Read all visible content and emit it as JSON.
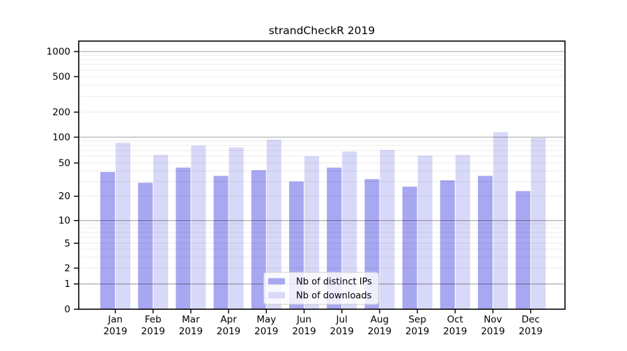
{
  "window": {
    "title": "strandCheckR 2019"
  },
  "chart_data": {
    "type": "bar",
    "title": "strandCheckR 2019",
    "categories": [
      "Jan",
      "Feb",
      "Mar",
      "Apr",
      "May",
      "Jun",
      "Jul",
      "Aug",
      "Sep",
      "Oct",
      "Nov",
      "Dec"
    ],
    "category_year": "2019",
    "series": [
      {
        "name": "Nb of distinct IPs",
        "color": "#a7a7f2",
        "values": [
          39,
          29,
          44,
          35,
          41,
          30,
          44,
          32,
          26,
          31,
          35,
          23
        ]
      },
      {
        "name": "Nb of downloads",
        "color": "#d8d8f8",
        "values": [
          86,
          62,
          80,
          76,
          94,
          60,
          68,
          71,
          61,
          62,
          115,
          98
        ]
      }
    ],
    "xlabel": "",
    "ylabel": "",
    "yscale": "symlog",
    "yticks": [
      0,
      1,
      2,
      5,
      10,
      20,
      50,
      100,
      200,
      500,
      1000
    ],
    "ylim": [
      0,
      1350
    ],
    "grid": true,
    "legend": {
      "position": "lower-center",
      "labels": [
        "Nb of distinct IPs",
        "Nb of downloads"
      ]
    }
  },
  "colors": {
    "bar_distinct_ips": "#a7a7f2",
    "bar_downloads": "#d8d8f8",
    "major_grid": "rgba(0,0,0,0.30)",
    "minor_grid": "rgba(0,0,0,0.08)",
    "axis": "#000000",
    "legend_border": "#cccccc",
    "legend_bg": "rgba(255,255,255,0.8)"
  }
}
